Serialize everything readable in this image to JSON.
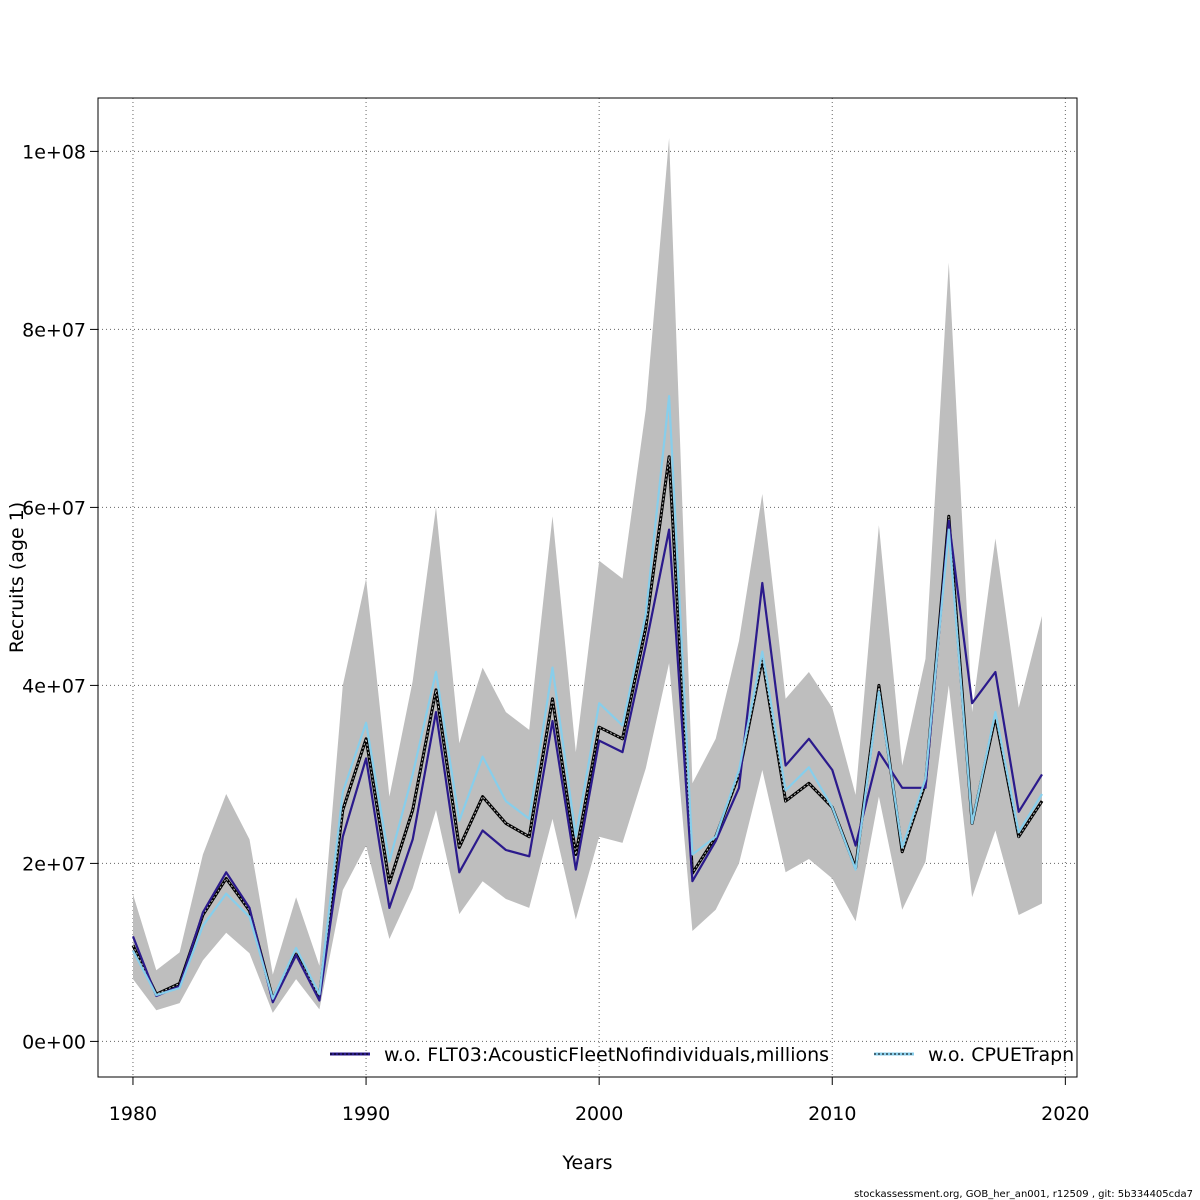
{
  "chart_data": {
    "type": "line",
    "xlabel": "Years",
    "ylabel": "Recruits (age 1)",
    "xlim": [
      1978.5,
      2020.5
    ],
    "ylim": [
      -4000000,
      106000000
    ],
    "x_ticks": [
      1980,
      1990,
      2000,
      2010,
      2020
    ],
    "x_tick_labels": [
      "1980",
      "1990",
      "2000",
      "2010",
      "2020"
    ],
    "y_ticks": [
      0,
      20000000,
      40000000,
      60000000,
      80000000,
      100000000
    ],
    "y_tick_labels": [
      "0e+00",
      "2e+07",
      "4e+07",
      "6e+07",
      "8e+07",
      "1e+08"
    ],
    "grid": true,
    "legend_position": "bottom",
    "x": [
      1980,
      1981,
      1982,
      1983,
      1984,
      1985,
      1986,
      1987,
      1988,
      1989,
      1990,
      1991,
      1992,
      1993,
      1994,
      1995,
      1996,
      1997,
      1998,
      1999,
      2000,
      2001,
      2002,
      2003,
      2004,
      2005,
      2006,
      2007,
      2008,
      2009,
      2010,
      2011,
      2012,
      2013,
      2014,
      2015,
      2016,
      2017,
      2018,
      2019
    ],
    "band": {
      "color": "#bebebe",
      "upper": [
        16500000,
        8000000,
        10000000,
        21000000,
        27800000,
        22700000,
        7500000,
        16200000,
        8500000,
        40000000,
        52000000,
        27500000,
        40500000,
        60000000,
        33500000,
        42000000,
        37000000,
        35000000,
        59000000,
        32500000,
        54000000,
        52000000,
        71000000,
        101500000,
        29000000,
        34000000,
        45000000,
        61500000,
        38500000,
        41500000,
        37500000,
        27700000,
        58000000,
        31000000,
        43000000,
        87500000,
        37000000,
        56500000,
        37500000,
        47800000
      ],
      "lower": [
        7000000,
        3500000,
        4300000,
        9100000,
        12200000,
        9900000,
        3200000,
        7000000,
        3600000,
        17000000,
        22000000,
        11500000,
        17200000,
        26000000,
        14300000,
        18000000,
        16000000,
        15000000,
        25000000,
        13700000,
        23000000,
        22300000,
        30700000,
        42500000,
        12400000,
        14800000,
        20000000,
        30500000,
        19000000,
        20500000,
        18300000,
        13500000,
        27500000,
        14800000,
        20200000,
        40000000,
        16200000,
        23700000,
        14200000,
        15500000
      ]
    },
    "series": [
      {
        "color": "#000000",
        "values": [
          10800000,
          5300000,
          6500000,
          14200000,
          18300000,
          14700000,
          4800000,
          9800000,
          5100000,
          26000000,
          34000000,
          17800000,
          26000000,
          39500000,
          21800000,
          27500000,
          24500000,
          23000000,
          38500000,
          21000000,
          35300000,
          34000000,
          46500000,
          65700000,
          18900000,
          23000000,
          30000000,
          43000000,
          27000000,
          29000000,
          26300000,
          19500000,
          40000000,
          21300000,
          29000000,
          59000000,
          24500000,
          36500000,
          23000000,
          27000000
        ]
      },
      {
        "color": "#2b1a8c",
        "values": [
          11800000,
          5100000,
          6200000,
          14500000,
          19000000,
          15000000,
          4400000,
          9700000,
          4600000,
          23000000,
          31800000,
          15000000,
          22700000,
          37000000,
          19000000,
          23700000,
          21500000,
          20800000,
          36000000,
          19300000,
          33800000,
          32500000,
          44500000,
          57500000,
          18000000,
          22500000,
          28500000,
          51500000,
          31000000,
          34000000,
          30500000,
          22000000,
          32500000,
          28500000,
          28500000,
          58500000,
          38000000,
          41500000,
          25800000,
          30000000
        ]
      },
      {
        "color": "#87ceeb",
        "values": [
          10200000,
          5200000,
          6000000,
          13000000,
          16600000,
          14000000,
          4800000,
          10500000,
          5300000,
          28000000,
          35800000,
          20200000,
          30000000,
          41500000,
          24800000,
          32000000,
          27000000,
          25000000,
          42000000,
          23000000,
          38000000,
          35500000,
          48000000,
          72500000,
          21000000,
          23000000,
          30500000,
          43800000,
          28200000,
          30800000,
          26300000,
          19300000,
          39300000,
          21800000,
          29500000,
          57500000,
          24500000,
          37000000,
          23500000,
          27800000
        ]
      }
    ],
    "legend": [
      {
        "label": "w.o. FLT03:AcousticFleetNofindividuals,millions",
        "color": "#2b1a8c",
        "style": "solid-with-dotted"
      },
      {
        "label": "w.o. CPUETrapn",
        "color": "#87ceeb",
        "style": "solid-with-dotted"
      }
    ]
  },
  "footer": "stockassessment.org, GOB_her_an001, r12509 , git: 5b334405cda7"
}
